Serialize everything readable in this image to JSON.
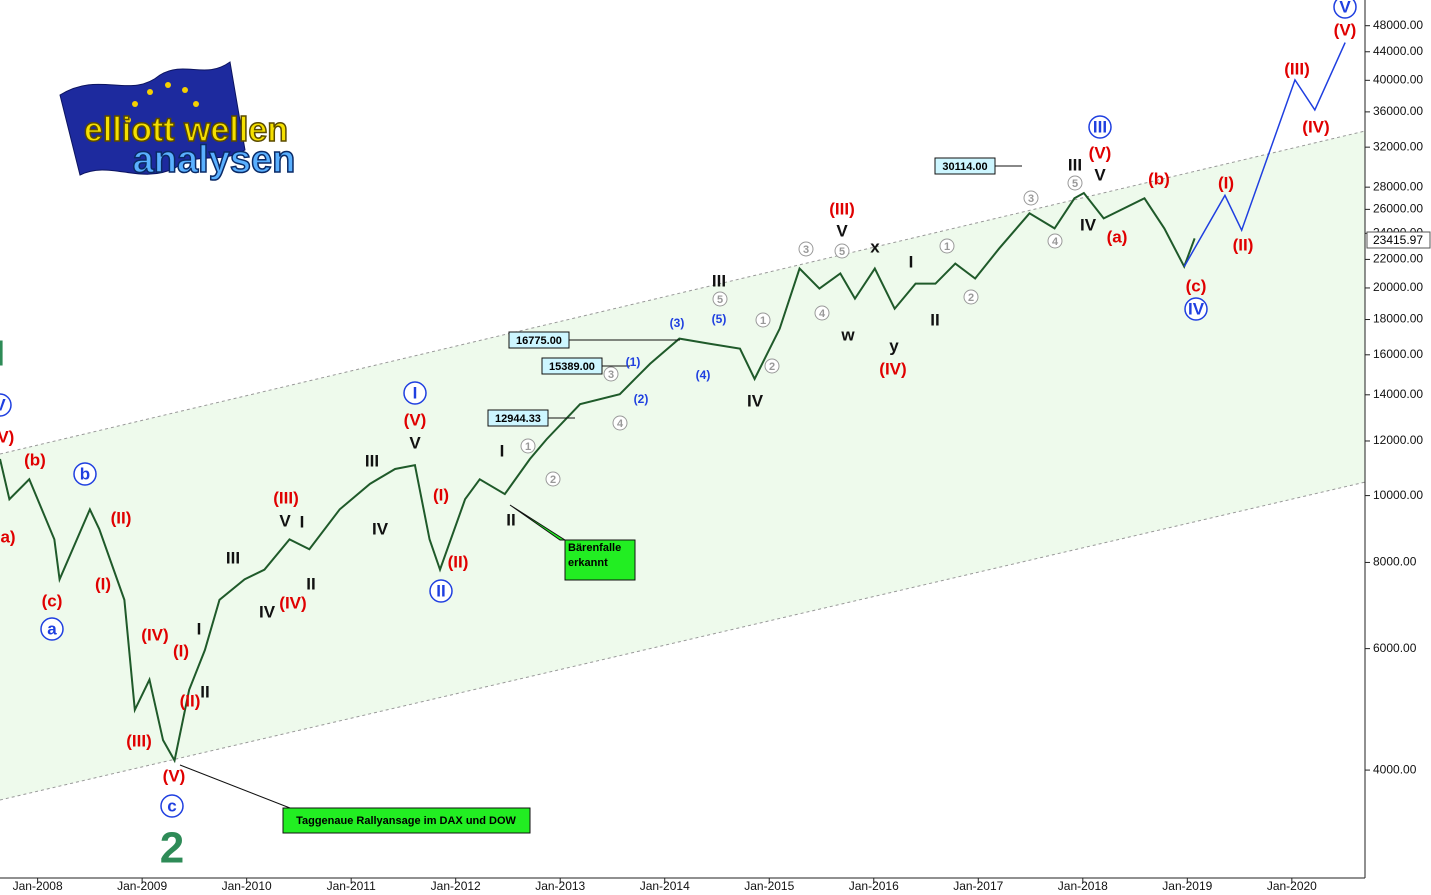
{
  "chart_data": {
    "type": "line",
    "log_scale": true,
    "logo": {
      "line1": "elliott wellen",
      "line2": "analysen"
    },
    "xlim": [
      2007.64,
      2020.7
    ],
    "xticks": [
      {
        "value": 2008,
        "label": "Jan-2008"
      },
      {
        "value": 2009,
        "label": "Jan-2009"
      },
      {
        "value": 2010,
        "label": "Jan-2010"
      },
      {
        "value": 2011,
        "label": "Jan-2011"
      },
      {
        "value": 2012,
        "label": "Jan-2012"
      },
      {
        "value": 2013,
        "label": "Jan-2013"
      },
      {
        "value": 2014,
        "label": "Jan-2014"
      },
      {
        "value": 2015,
        "label": "Jan-2015"
      },
      {
        "value": 2016,
        "label": "Jan-2016"
      },
      {
        "value": 2017,
        "label": "Jan-2017"
      },
      {
        "value": 2018,
        "label": "Jan-2018"
      },
      {
        "value": 2019,
        "label": "Jan-2019"
      },
      {
        "value": 2020,
        "label": "Jan-2020"
      }
    ],
    "ylim": [
      2790,
      52300
    ],
    "yticks": [
      {
        "value": 4000,
        "label": "4000.00"
      },
      {
        "value": 6000,
        "label": "6000.00"
      },
      {
        "value": 8000,
        "label": "8000.00"
      },
      {
        "value": 10000,
        "label": "10000.00"
      },
      {
        "value": 12000,
        "label": "12000.00"
      },
      {
        "value": 14000,
        "label": "14000.00"
      },
      {
        "value": 16000,
        "label": "16000.00"
      },
      {
        "value": 18000,
        "label": "18000.00"
      },
      {
        "value": 20000,
        "label": "20000.00"
      },
      {
        "value": 22000,
        "label": "22000.00"
      },
      {
        "value": 24000,
        "label": "24000.00"
      },
      {
        "value": 26000,
        "label": "26000.00"
      },
      {
        "value": 28000,
        "label": "28000.00"
      },
      {
        "value": 32000,
        "label": "32000.00"
      },
      {
        "value": 36000,
        "label": "36000.00"
      },
      {
        "value": 40000,
        "label": "40000.00"
      },
      {
        "value": 44000,
        "label": "44000.00"
      },
      {
        "value": 48000,
        "label": "48000.00"
      }
    ],
    "series": [
      {
        "color": "#1f5a2a",
        "x": [
          2007.64,
          2007.73,
          2007.92,
          2008.16,
          2008.21,
          2008.5,
          2008.59,
          2008.83,
          2008.93,
          2009.07,
          2009.2,
          2009.31,
          2009.45,
          2009.6,
          2009.74,
          2009.98,
          2010.17,
          2010.41,
          2010.6,
          2010.89,
          2011.18,
          2011.42,
          2011.61,
          2011.75,
          2011.85,
          2012.09,
          2012.23,
          2012.47,
          2012.71,
          2012.87,
          2013.19,
          2013.57,
          2013.86,
          2014.14,
          2014.43,
          2014.72,
          2014.86,
          2015.1,
          2015.29,
          2015.48,
          2015.68,
          2015.82,
          2016.01,
          2016.2,
          2016.4,
          2016.59,
          2016.78,
          2016.97,
          2017.2,
          2017.49,
          2017.73,
          2017.92,
          2018.01,
          2018.2,
          2018.59,
          2018.78,
          2018.97,
          2019.07
        ],
        "values": [
          11300,
          9880,
          10560,
          8640,
          7560,
          9550,
          8940,
          7060,
          4890,
          5410,
          4420,
          4130,
          5230,
          5970,
          7060,
          7560,
          7810,
          8640,
          8360,
          9550,
          10400,
          10930,
          11070,
          8640,
          7810,
          9880,
          10560,
          10050,
          11300,
          12070,
          13570,
          14030,
          15530,
          16890,
          16600,
          16330,
          14760,
          17460,
          21340,
          19960,
          20990,
          19300,
          21340,
          18660,
          20290,
          20290,
          21700,
          20640,
          22820,
          25660,
          24400,
          26980,
          27460,
          25230,
          26980,
          24400,
          21480,
          23600
        ]
      },
      {
        "color": "#1f3fe0",
        "x": [
          2018.97,
          2019.36,
          2019.52,
          2020.03,
          2020.22,
          2020.51
        ],
        "values": [
          21480,
          27240,
          24250,
          40060,
          36230,
          45370
        ]
      }
    ],
    "channel": {
      "x": [
        2007.64,
        2020.7
      ],
      "upper": [
        11490,
        33770
      ],
      "lower": [
        3620,
        10460
      ]
    },
    "current_label": "23415.97",
    "annotations": [
      {
        "text": "I",
        "color": "#2e8b57"
      },
      {
        "text": "V",
        "color": "#1f3fe0",
        "style": "circle"
      },
      {
        "text": "(V)",
        "color": "#e00000"
      },
      {
        "text": "(b)",
        "color": "#e00000"
      },
      {
        "text": "a)",
        "color": "#e00000"
      },
      {
        "text": "b",
        "color": "#1f3fe0",
        "style": "circle"
      },
      {
        "text": "(c)",
        "color": "#e00000"
      },
      {
        "text": "a",
        "color": "#1f3fe0",
        "style": "circle"
      },
      {
        "text": "(II)",
        "color": "#e00000"
      },
      {
        "text": "(I)",
        "color": "#e00000"
      },
      {
        "text": "(IV)",
        "color": "#e00000"
      },
      {
        "text": "(I)",
        "color": "#e00000"
      },
      {
        "text": "(II)",
        "color": "#e00000"
      },
      {
        "text": "(III)",
        "color": "#e00000"
      },
      {
        "text": "(V)",
        "color": "#e00000"
      },
      {
        "text": "c",
        "color": "#1f3fe0",
        "style": "circle"
      },
      {
        "text": "2",
        "color": "#2e8b57",
        "style": "big"
      },
      {
        "text": "I",
        "color": "#111"
      },
      {
        "text": "II",
        "color": "#111"
      },
      {
        "text": "III",
        "color": "#111"
      },
      {
        "text": "IV",
        "color": "#111"
      },
      {
        "text": "(IV)",
        "color": "#e00000"
      },
      {
        "text": "(III)",
        "color": "#e00000"
      },
      {
        "text": "V",
        "color": "#111"
      },
      {
        "text": "I",
        "color": "#111"
      },
      {
        "text": "II",
        "color": "#111"
      },
      {
        "text": "III",
        "color": "#111"
      },
      {
        "text": "IV",
        "color": "#111"
      },
      {
        "text": "I",
        "color": "#1f3fe0",
        "style": "circle"
      },
      {
        "text": "(V)",
        "color": "#e00000"
      },
      {
        "text": "V",
        "color": "#111"
      },
      {
        "text": "(I)",
        "color": "#e00000"
      },
      {
        "text": "(II)",
        "color": "#e00000"
      },
      {
        "text": "II",
        "color": "#1f3fe0",
        "style": "circle"
      },
      {
        "text": "I",
        "color": "#111"
      },
      {
        "text": "II",
        "color": "#111"
      },
      {
        "text": "1",
        "color": "#999",
        "style": "small"
      },
      {
        "text": "2",
        "color": "#999",
        "style": "small"
      },
      {
        "text": "3",
        "color": "#999",
        "style": "small"
      },
      {
        "text": "4",
        "color": "#999",
        "style": "small"
      },
      {
        "text": "(1)",
        "color": "#1f3fe0",
        "style": "tiny"
      },
      {
        "text": "(2)",
        "color": "#1f3fe0",
        "style": "tiny"
      },
      {
        "text": "(3)",
        "color": "#1f3fe0",
        "style": "tiny"
      },
      {
        "text": "(4)",
        "color": "#1f3fe0",
        "style": "tiny"
      },
      {
        "text": "(5)",
        "color": "#1f3fe0",
        "style": "tiny"
      },
      {
        "text": "III",
        "color": "#111"
      },
      {
        "text": "5",
        "color": "#999",
        "style": "small"
      },
      {
        "text": "1",
        "color": "#999",
        "style": "small"
      },
      {
        "text": "2",
        "color": "#999",
        "style": "small"
      },
      {
        "text": "IV",
        "color": "#111"
      },
      {
        "text": "3",
        "color": "#999",
        "style": "small"
      },
      {
        "text": "4",
        "color": "#999",
        "style": "small"
      },
      {
        "text": "(III)",
        "color": "#e00000"
      },
      {
        "text": "V",
        "color": "#111"
      },
      {
        "text": "5",
        "color": "#999",
        "style": "small"
      },
      {
        "text": "w",
        "color": "#111"
      },
      {
        "text": "x",
        "color": "#111"
      },
      {
        "text": "y",
        "color": "#111"
      },
      {
        "text": "(IV)",
        "color": "#e00000"
      },
      {
        "text": "I",
        "color": "#111"
      },
      {
        "text": "1",
        "color": "#999",
        "style": "small"
      },
      {
        "text": "II",
        "color": "#111"
      },
      {
        "text": "2",
        "color": "#999",
        "style": "small"
      },
      {
        "text": "3",
        "color": "#999",
        "style": "small"
      },
      {
        "text": "4",
        "color": "#999",
        "style": "small"
      },
      {
        "text": "III",
        "color": "#111"
      },
      {
        "text": "5",
        "color": "#999",
        "style": "small"
      },
      {
        "text": "III",
        "color": "#1f3fe0",
        "style": "circle"
      },
      {
        "text": "(V)",
        "color": "#e00000"
      },
      {
        "text": "V",
        "color": "#111"
      },
      {
        "text": "IV",
        "color": "#111"
      },
      {
        "text": "(a)",
        "color": "#e00000"
      },
      {
        "text": "(b)",
        "color": "#e00000"
      },
      {
        "text": "(c)",
        "color": "#e00000"
      },
      {
        "text": "IV",
        "color": "#1f3fe0",
        "style": "circle"
      },
      {
        "text": "(I)",
        "color": "#e00000"
      },
      {
        "text": "(II)",
        "color": "#e00000"
      },
      {
        "text": "(III)",
        "color": "#e00000"
      },
      {
        "text": "(IV)",
        "color": "#e00000"
      },
      {
        "text": "(V)",
        "color": "#e00000"
      },
      {
        "text": "V",
        "color": "#1f3fe0",
        "style": "circle"
      }
    ],
    "price_boxes": [
      "30114.00",
      "16775.00",
      "15389.00",
      "12944.33"
    ],
    "callouts": [
      {
        "lines": [
          "Bärenfalle",
          "erkannt"
        ]
      },
      {
        "lines": [
          "Taggenaue Rallyansage im DAX und DOW"
        ]
      }
    ]
  }
}
